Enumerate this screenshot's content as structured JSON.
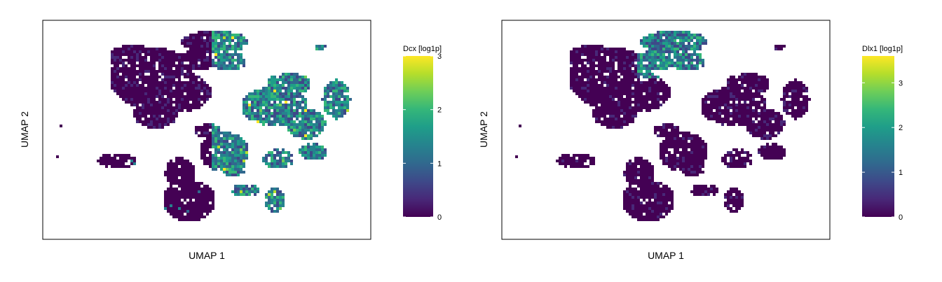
{
  "chart_data": [
    {
      "type": "scatter",
      "style": "hexbin",
      "xlabel": "UMAP 1",
      "ylabel": "UMAP 2",
      "colorbar": {
        "title": "Dcx [log1p]",
        "range": [
          0,
          3
        ],
        "ticks": [
          0,
          1,
          2,
          3
        ],
        "tick_labels": [
          "0",
          "1",
          "2",
          "3"
        ],
        "colormap": "viridis"
      },
      "grid": false,
      "legend": "colorbar at right"
    },
    {
      "type": "scatter",
      "style": "hexbin",
      "xlabel": "UMAP 1",
      "ylabel": "UMAP 2",
      "colorbar": {
        "title": "Dlx1 [log1p]",
        "range": [
          0,
          3.6
        ],
        "ticks": [
          0,
          1,
          2,
          3
        ],
        "tick_labels": [
          "0",
          "1",
          "2",
          "3"
        ],
        "colormap": "viridis"
      },
      "grid": false,
      "legend": "colorbar at right"
    }
  ],
  "colors": {
    "viridis": [
      "#440154",
      "#482878",
      "#3e4989",
      "#31688e",
      "#26828e",
      "#1f9e89",
      "#35b779",
      "#6ece58",
      "#b5de2b",
      "#fde725"
    ]
  }
}
